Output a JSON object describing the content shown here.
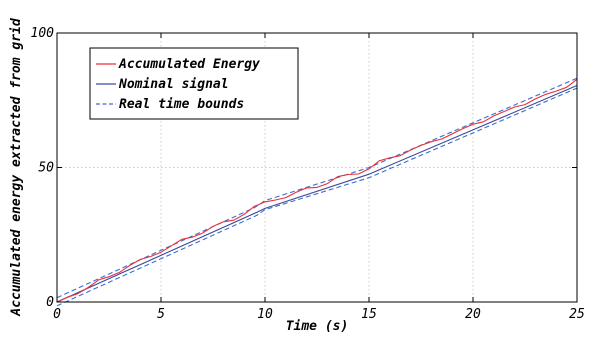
{
  "chart_data": {
    "type": "line",
    "title": "",
    "xlabel": "Time (s)",
    "ylabel": "Accumulated energy extracted from grid",
    "xlim": [
      0,
      25
    ],
    "ylim": [
      0,
      100
    ],
    "xticks": [
      0,
      5,
      10,
      15,
      20,
      25
    ],
    "yticks": [
      0,
      50,
      100
    ],
    "grid": true,
    "legend_position": "top-left",
    "series": [
      {
        "name": "Accumulated Energy",
        "color": "#e8303a",
        "style": "solid",
        "x": [
          0,
          0.5,
          1,
          1.5,
          2,
          2.5,
          3,
          3.5,
          4,
          4.5,
          5,
          5.5,
          6,
          6.5,
          7,
          7.5,
          8,
          8.5,
          9,
          9.5,
          10,
          10.5,
          11,
          11.5,
          12,
          12.5,
          13,
          13.5,
          14,
          14.5,
          15,
          15.5,
          16,
          16.5,
          17,
          17.5,
          18,
          18.5,
          19,
          19.5,
          20,
          20.5,
          21,
          21.5,
          22,
          22.5,
          23,
          23.5,
          24,
          24.5,
          25
        ],
        "y": [
          0,
          1.8,
          3.1,
          5.4,
          8.2,
          9.4,
          11.0,
          13.6,
          15.8,
          16.9,
          18.5,
          20.9,
          23.3,
          24.1,
          25.6,
          28.1,
          29.8,
          30.4,
          32.6,
          35.6,
          37.2,
          37.9,
          38.8,
          40.8,
          42.4,
          42.6,
          44.0,
          46.6,
          47.4,
          47.6,
          49.5,
          52.5,
          53.6,
          54.4,
          56.5,
          58.2,
          59.6,
          60.6,
          62.5,
          64.4,
          66.1,
          67.0,
          69.2,
          70.8,
          72.5,
          73.4,
          75.5,
          77.2,
          78.4,
          79.8,
          82.8
        ]
      },
      {
        "name": "Nominal signal",
        "color": "#3a4a9a",
        "style": "solid",
        "x": [
          0,
          9.6,
          10,
          15,
          25
        ],
        "y": [
          0,
          33.3,
          34.8,
          47.5,
          80.5
        ]
      },
      {
        "name": "Real time bounds",
        "color": "#3a6fd0",
        "style": "dashed",
        "segments": [
          {
            "x": [
              0,
              9.5,
              10,
              15,
              25
            ],
            "y": [
              1.6,
              35.1,
              37.7,
              50.0,
              83.2
            ]
          },
          {
            "x": [
              0,
              9.6,
              10,
              15,
              25
            ],
            "y": [
              -1.4,
              32.2,
              34.3,
              46.2,
              79.5
            ]
          }
        ]
      }
    ]
  }
}
